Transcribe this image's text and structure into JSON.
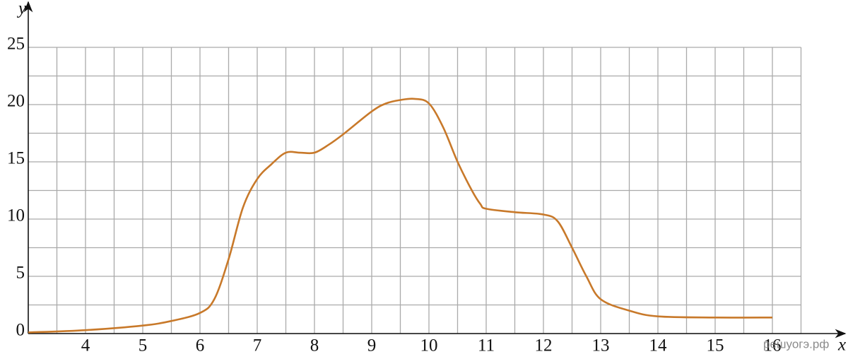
{
  "chart_data": {
    "type": "line",
    "x_label": "x",
    "y_label": "y",
    "watermark": "решуогэ.рф",
    "x": [
      3,
      4,
      5,
      5.5,
      6,
      6.25,
      6.5,
      6.75,
      7,
      7.25,
      7.5,
      7.75,
      8,
      8.25,
      8.5,
      9,
      9.25,
      9.5,
      9.75,
      10,
      10.25,
      10.5,
      10.75,
      10.9,
      11,
      11.5,
      12,
      12.25,
      12.5,
      12.75,
      13,
      13.5,
      14,
      15,
      16
    ],
    "series": [
      {
        "name": "y",
        "color": "#c8792a",
        "values": [
          0.1,
          0.3,
          0.7,
          1.1,
          1.8,
          3,
          6.5,
          11,
          13.5,
          14.8,
          15.8,
          15.8,
          15.8,
          16.5,
          17.4,
          19.4,
          20.1,
          20.4,
          20.5,
          20.1,
          18,
          15,
          12.5,
          11.3,
          10.9,
          10.6,
          10.4,
          9.8,
          7.5,
          5,
          3,
          2,
          1.5,
          1.4,
          1.4
        ]
      }
    ],
    "xlim": [
      3,
      16.5
    ],
    "ylim": [
      0,
      25
    ],
    "xticks": [
      4,
      5,
      6,
      7,
      8,
      9,
      10,
      11,
      12,
      13,
      14,
      15,
      16
    ],
    "yticks": [
      0,
      5,
      10,
      15,
      20,
      25
    ],
    "grid": true
  }
}
